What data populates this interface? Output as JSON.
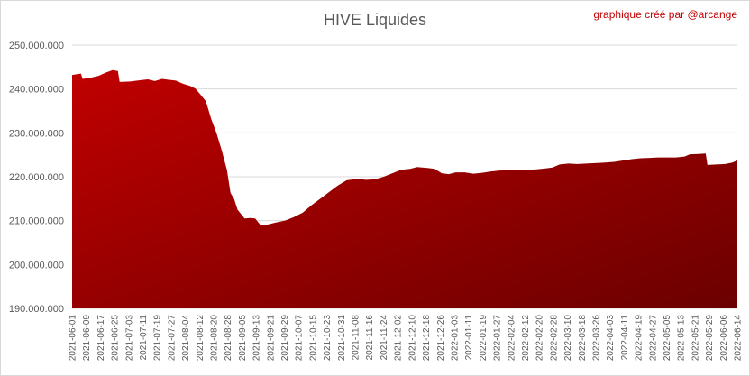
{
  "chart_data": {
    "type": "area",
    "title": "HIVE Liquides",
    "annotation": "graphique créé par @arcange",
    "xlabel": "",
    "ylabel": "",
    "ylim": [
      190000000,
      250000000
    ],
    "yticks": [
      190000000,
      200000000,
      210000000,
      220000000,
      230000000,
      240000000,
      250000000
    ],
    "ytick_labels": [
      "190.000.000",
      "200.000.000",
      "210.000.000",
      "220.000.000",
      "230.000.000",
      "240.000.000",
      "250.000.000"
    ],
    "x_start": "2021-06-01",
    "x_end": "2022-06-14",
    "xticks": [
      "2021-06-01",
      "2021-06-09",
      "2021-06-17",
      "2021-06-25",
      "2021-07-03",
      "2021-07-11",
      "2021-07-19",
      "2021-07-27",
      "2021-08-04",
      "2021-08-12",
      "2021-08-20",
      "2021-08-28",
      "2021-09-05",
      "2021-09-13",
      "2021-09-21",
      "2021-09-29",
      "2021-10-07",
      "2021-10-15",
      "2021-10-23",
      "2021-10-31",
      "2021-11-08",
      "2021-11-16",
      "2021-11-24",
      "2021-12-02",
      "2021-12-10",
      "2021-12-18",
      "2021-12-26",
      "2022-01-03",
      "2022-01-11",
      "2022-01-19",
      "2022-01-27",
      "2022-02-04",
      "2022-02-12",
      "2022-02-20",
      "2022-02-28",
      "2022-03-10",
      "2022-03-18",
      "2022-03-26",
      "2022-04-03",
      "2022-04-11",
      "2022-04-19",
      "2022-04-27",
      "2022-05-05",
      "2022-05-13",
      "2022-05-21",
      "2022-05-29",
      "2022-06-06",
      "2022-06-14"
    ],
    "grid": true,
    "colors": {
      "area_top": "#c00000",
      "area_bottom": "#6b0000",
      "grid": "#d9d9d9"
    },
    "points": [
      [
        "2021-06-01",
        243200000
      ],
      [
        "2021-06-06",
        243500000
      ],
      [
        "2021-06-07",
        242300000
      ],
      [
        "2021-06-12",
        242600000
      ],
      [
        "2021-06-16",
        243000000
      ],
      [
        "2021-06-20",
        243700000
      ],
      [
        "2021-06-24",
        244300000
      ],
      [
        "2021-06-27",
        244100000
      ],
      [
        "2021-06-28",
        241600000
      ],
      [
        "2021-07-04",
        241700000
      ],
      [
        "2021-07-10",
        242000000
      ],
      [
        "2021-07-14",
        242200000
      ],
      [
        "2021-07-18",
        241800000
      ],
      [
        "2021-07-22",
        242300000
      ],
      [
        "2021-07-26",
        242100000
      ],
      [
        "2021-07-30",
        241900000
      ],
      [
        "2021-08-03",
        241200000
      ],
      [
        "2021-08-07",
        240700000
      ],
      [
        "2021-08-10",
        240100000
      ],
      [
        "2021-08-13",
        238700000
      ],
      [
        "2021-08-16",
        237200000
      ],
      [
        "2021-08-19",
        233200000
      ],
      [
        "2021-08-22",
        230000000
      ],
      [
        "2021-08-25",
        226000000
      ],
      [
        "2021-08-28",
        221500000
      ],
      [
        "2021-08-30",
        216300000
      ],
      [
        "2021-09-01",
        215000000
      ],
      [
        "2021-09-03",
        212500000
      ],
      [
        "2021-09-05",
        211500000
      ],
      [
        "2021-09-07",
        210500000
      ],
      [
        "2021-09-10",
        210600000
      ],
      [
        "2021-09-13",
        210500000
      ],
      [
        "2021-09-16",
        209000000
      ],
      [
        "2021-09-20",
        209100000
      ],
      [
        "2021-09-25",
        209600000
      ],
      [
        "2021-09-30",
        210000000
      ],
      [
        "2021-10-05",
        210800000
      ],
      [
        "2021-10-10",
        211800000
      ],
      [
        "2021-10-15",
        213500000
      ],
      [
        "2021-10-20",
        215000000
      ],
      [
        "2021-10-25",
        216500000
      ],
      [
        "2021-10-30",
        218000000
      ],
      [
        "2021-11-04",
        219200000
      ],
      [
        "2021-11-10",
        219500000
      ],
      [
        "2021-11-15",
        219300000
      ],
      [
        "2021-11-20",
        219400000
      ],
      [
        "2021-11-25",
        220000000
      ],
      [
        "2021-11-30",
        220800000
      ],
      [
        "2021-12-05",
        221600000
      ],
      [
        "2021-12-10",
        221800000
      ],
      [
        "2021-12-14",
        222200000
      ],
      [
        "2021-12-20",
        222000000
      ],
      [
        "2021-12-24",
        221800000
      ],
      [
        "2021-12-28",
        220800000
      ],
      [
        "2022-01-01",
        220600000
      ],
      [
        "2022-01-05",
        221000000
      ],
      [
        "2022-01-10",
        221000000
      ],
      [
        "2022-01-15",
        220700000
      ],
      [
        "2022-01-20",
        220900000
      ],
      [
        "2022-01-25",
        221200000
      ],
      [
        "2022-01-30",
        221400000
      ],
      [
        "2022-02-05",
        221500000
      ],
      [
        "2022-02-10",
        221500000
      ],
      [
        "2022-02-15",
        221600000
      ],
      [
        "2022-02-20",
        221700000
      ],
      [
        "2022-02-25",
        221900000
      ],
      [
        "2022-03-01",
        222100000
      ],
      [
        "2022-03-05",
        222800000
      ],
      [
        "2022-03-10",
        223000000
      ],
      [
        "2022-03-15",
        222900000
      ],
      [
        "2022-03-20",
        223000000
      ],
      [
        "2022-03-25",
        223100000
      ],
      [
        "2022-03-30",
        223200000
      ],
      [
        "2022-04-05",
        223400000
      ],
      [
        "2022-04-10",
        223700000
      ],
      [
        "2022-04-15",
        224000000
      ],
      [
        "2022-04-20",
        224200000
      ],
      [
        "2022-04-25",
        224300000
      ],
      [
        "2022-04-30",
        224400000
      ],
      [
        "2022-05-05",
        224400000
      ],
      [
        "2022-05-10",
        224400000
      ],
      [
        "2022-05-15",
        224600000
      ],
      [
        "2022-05-18",
        225100000
      ],
      [
        "2022-05-23",
        225200000
      ],
      [
        "2022-05-27",
        225300000
      ],
      [
        "2022-05-28",
        222700000
      ],
      [
        "2022-06-02",
        222800000
      ],
      [
        "2022-06-07",
        222900000
      ],
      [
        "2022-06-11",
        223200000
      ],
      [
        "2022-06-14",
        223700000
      ]
    ]
  }
}
